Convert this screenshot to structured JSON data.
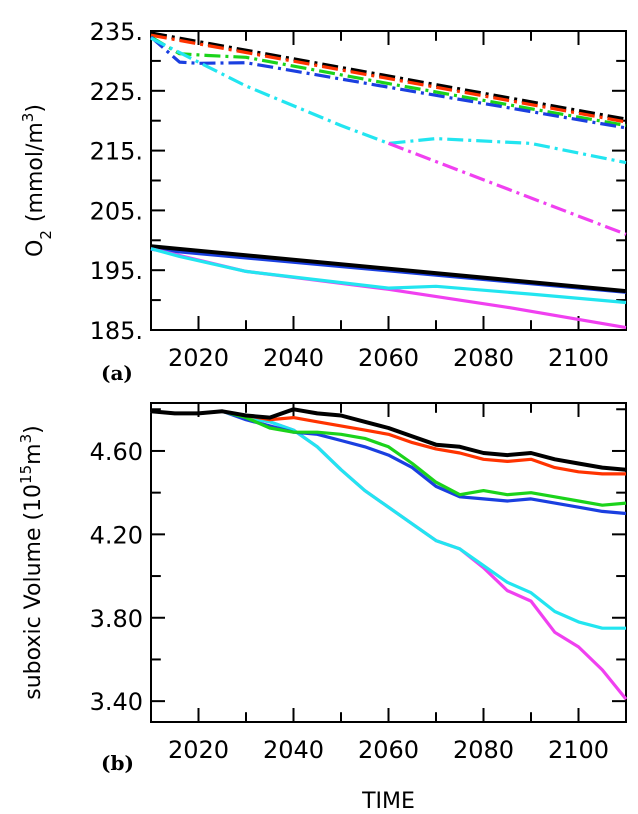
{
  "colors": {
    "black": "#000000",
    "red": "#ff3300",
    "green": "#1bd31b",
    "blue": "#1a3fe0",
    "cyan": "#22e5f0",
    "magenta": "#f040f0"
  },
  "chart_data": [
    {
      "type": "line",
      "panel_label": "(a)",
      "ylabel_main": "O",
      "ylabel_sub": "2",
      "ylabel_unit": "(mmol/m",
      "ylabel_sup": "3",
      "ylabel_close": ")",
      "xlim": [
        2010,
        2110
      ],
      "ylim": [
        185,
        235
      ],
      "xticks": [
        2020,
        2040,
        2060,
        2080,
        2100
      ],
      "xtick_labels": [
        "2020",
        "2040",
        "2060",
        "2080",
        "2100"
      ],
      "yticks": [
        185,
        195,
        205,
        215,
        225,
        235
      ],
      "ytick_labels": [
        "185.",
        "195.",
        "205.",
        "215.",
        "225.",
        "235."
      ],
      "series": [
        {
          "color": "black",
          "style": "dashdot",
          "x": [
            2010,
            2110
          ],
          "y": [
            234.6,
            220.2
          ]
        },
        {
          "color": "red",
          "style": "dashdot",
          "x": [
            2010,
            2110
          ],
          "y": [
            234.3,
            219.8
          ]
        },
        {
          "color": "green",
          "style": "dashdot",
          "x": [
            2010,
            2016,
            2022,
            2030,
            2060,
            2110
          ],
          "y": [
            234.0,
            231.2,
            230.9,
            230.6,
            226.2,
            219.2
          ]
        },
        {
          "color": "blue",
          "style": "dashdot",
          "x": [
            2010,
            2016,
            2020,
            2030,
            2060,
            2110
          ],
          "y": [
            234.0,
            229.8,
            229.6,
            229.7,
            225.6,
            218.8
          ]
        },
        {
          "color": "cyan",
          "style": "dashdot",
          "x": [
            2010,
            2030,
            2050,
            2060,
            2070,
            2090,
            2110
          ],
          "y": [
            233.8,
            225.8,
            219.2,
            216.2,
            217.0,
            216.2,
            213.0
          ]
        },
        {
          "color": "magenta",
          "style": "dashdot",
          "x": [
            2060,
            2110
          ],
          "y": [
            216.2,
            201.0
          ]
        },
        {
          "color": "green",
          "style": "solid",
          "x": [
            2010,
            2110
          ],
          "y": [
            198.6,
            191.5
          ]
        },
        {
          "color": "blue",
          "style": "solid",
          "x": [
            2010,
            2110
          ],
          "y": [
            198.5,
            191.3
          ]
        },
        {
          "color": "black",
          "style": "solid",
          "x": [
            2010,
            2110
          ],
          "y": [
            199.0,
            191.5
          ]
        },
        {
          "color": "magenta",
          "style": "solid",
          "x": [
            2010,
            2030,
            2060,
            2085,
            2110
          ],
          "y": [
            198.6,
            194.8,
            191.8,
            188.8,
            185.4
          ]
        },
        {
          "color": "cyan",
          "style": "solid",
          "x": [
            2010,
            2016,
            2030,
            2060,
            2070,
            2090,
            2110
          ],
          "y": [
            198.6,
            197.3,
            194.8,
            192.0,
            192.3,
            191.0,
            189.6
          ]
        }
      ]
    },
    {
      "type": "line",
      "panel_label": "(b)",
      "ylabel_main": "suboxic Volume (10",
      "ylabel_sup": "15",
      "ylabel_mid": "m",
      "ylabel_sup2": "3",
      "ylabel_close": ")",
      "xlabel": "TIME",
      "xlim": [
        2010,
        2110
      ],
      "ylim": [
        3.3,
        4.83
      ],
      "xticks": [
        2020,
        2040,
        2060,
        2080,
        2100
      ],
      "xtick_labels": [
        "2020",
        "2040",
        "2060",
        "2080",
        "2100"
      ],
      "yticks": [
        3.4,
        3.8,
        4.2,
        4.6
      ],
      "ytick_labels": [
        "3.40",
        "3.80",
        "4.20",
        "4.60"
      ],
      "series": [
        {
          "color": "magenta",
          "style": "solid",
          "x": [
            2010,
            2015,
            2020,
            2025,
            2030,
            2035,
            2040,
            2045,
            2050,
            2055,
            2060,
            2065,
            2070,
            2075,
            2080,
            2085,
            2090,
            2095,
            2100,
            2105,
            2110
          ],
          "y": [
            4.79,
            4.78,
            4.78,
            4.79,
            4.76,
            4.74,
            4.7,
            4.62,
            4.51,
            4.41,
            4.33,
            4.25,
            4.17,
            4.13,
            4.04,
            3.93,
            3.88,
            3.73,
            3.66,
            3.55,
            3.41
          ]
        },
        {
          "color": "cyan",
          "style": "solid",
          "x": [
            2010,
            2015,
            2020,
            2025,
            2030,
            2035,
            2040,
            2045,
            2050,
            2055,
            2060,
            2065,
            2070,
            2075,
            2080,
            2085,
            2090,
            2095,
            2100,
            2105,
            2110
          ],
          "y": [
            4.79,
            4.78,
            4.78,
            4.79,
            4.76,
            4.74,
            4.7,
            4.62,
            4.51,
            4.41,
            4.33,
            4.25,
            4.17,
            4.13,
            4.05,
            3.97,
            3.92,
            3.83,
            3.78,
            3.75,
            3.75
          ]
        },
        {
          "color": "blue",
          "style": "solid",
          "x": [
            2010,
            2015,
            2020,
            2025,
            2030,
            2035,
            2040,
            2045,
            2050,
            2055,
            2060,
            2065,
            2070,
            2075,
            2080,
            2085,
            2090,
            2095,
            2100,
            2105,
            2110
          ],
          "y": [
            4.79,
            4.78,
            4.78,
            4.79,
            4.75,
            4.72,
            4.69,
            4.68,
            4.65,
            4.62,
            4.58,
            4.52,
            4.43,
            4.38,
            4.37,
            4.36,
            4.37,
            4.35,
            4.33,
            4.31,
            4.3
          ]
        },
        {
          "color": "green",
          "style": "solid",
          "x": [
            2010,
            2015,
            2020,
            2025,
            2030,
            2035,
            2040,
            2045,
            2050,
            2055,
            2060,
            2065,
            2070,
            2075,
            2080,
            2085,
            2090,
            2095,
            2100,
            2105,
            2110
          ],
          "y": [
            4.79,
            4.78,
            4.78,
            4.79,
            4.76,
            4.71,
            4.69,
            4.69,
            4.68,
            4.66,
            4.62,
            4.54,
            4.45,
            4.39,
            4.41,
            4.39,
            4.4,
            4.38,
            4.36,
            4.34,
            4.35
          ]
        },
        {
          "color": "red",
          "style": "solid",
          "x": [
            2010,
            2015,
            2020,
            2025,
            2030,
            2035,
            2040,
            2045,
            2050,
            2055,
            2060,
            2065,
            2070,
            2075,
            2080,
            2085,
            2090,
            2095,
            2100,
            2105,
            2110
          ],
          "y": [
            4.79,
            4.78,
            4.78,
            4.79,
            4.77,
            4.75,
            4.76,
            4.74,
            4.72,
            4.7,
            4.68,
            4.64,
            4.61,
            4.59,
            4.56,
            4.55,
            4.56,
            4.52,
            4.5,
            4.49,
            4.49
          ]
        },
        {
          "color": "black",
          "style": "solid",
          "x": [
            2010,
            2015,
            2020,
            2025,
            2030,
            2035,
            2040,
            2045,
            2050,
            2055,
            2060,
            2065,
            2070,
            2075,
            2080,
            2085,
            2090,
            2095,
            2100,
            2105,
            2110
          ],
          "y": [
            4.79,
            4.78,
            4.78,
            4.79,
            4.77,
            4.76,
            4.8,
            4.78,
            4.77,
            4.74,
            4.71,
            4.67,
            4.63,
            4.62,
            4.59,
            4.58,
            4.59,
            4.56,
            4.54,
            4.52,
            4.51
          ]
        }
      ]
    }
  ]
}
